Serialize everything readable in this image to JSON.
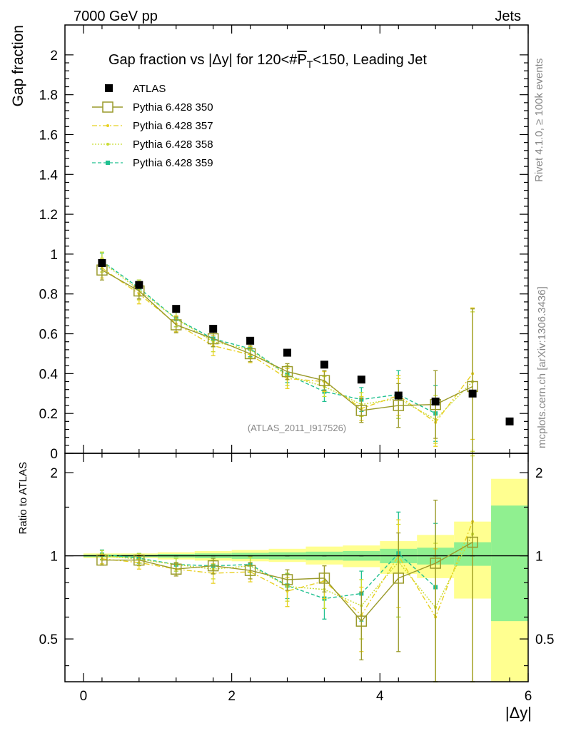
{
  "header": {
    "energy_label": "7000 GeV pp",
    "process_label": "Jets",
    "side_label_top": "Rivet 4.1.0, ≥ 100k events",
    "side_label_bottom": "mcplots.cern.ch [arXiv:1306.3436]",
    "analysis_id": "(ATLAS_2011_I917526)"
  },
  "chart_data": [
    {
      "type": "line",
      "panel": "main",
      "title_parts": [
        "Gap fraction vs |Δy| for 120<#",
        "P",
        "T",
        "<150, Leading Jet"
      ],
      "ylabel": "Gap fraction",
      "xlabel": "|Δy|",
      "xlim": [
        -0.25,
        6
      ],
      "ylim": [
        0,
        2.15
      ],
      "yticks": [
        0,
        0.2,
        0.4,
        0.6,
        0.8,
        1,
        1.2,
        1.4,
        1.6,
        1.8,
        2
      ],
      "ytick_labels": [
        "0",
        "0.2",
        "0.4",
        "0.6",
        "0.8",
        "1",
        "1.2",
        "1.4",
        "1.6",
        "1.8",
        "2"
      ],
      "x": [
        0.25,
        0.75,
        1.25,
        1.75,
        2.25,
        2.75,
        3.25,
        3.75,
        4.25,
        4.75,
        5.25
      ],
      "data": {
        "name": "ATLAS",
        "color": "#000000",
        "x": [
          0.25,
          0.75,
          1.25,
          1.75,
          2.25,
          2.75,
          3.25,
          3.75,
          4.25,
          4.75,
          5.25,
          5.75
        ],
        "y": [
          0.955,
          0.845,
          0.725,
          0.625,
          0.565,
          0.505,
          0.445,
          0.37,
          0.29,
          0.26,
          0.3,
          0.16
        ]
      },
      "series": [
        {
          "name": "Pythia 6.428 350",
          "color": "#9a9a2a",
          "style": "solid",
          "marker": "open-square",
          "y": [
            0.92,
            0.815,
            0.645,
            0.575,
            0.5,
            0.41,
            0.365,
            0.215,
            0.24,
            0.245,
            0.335
          ],
          "err": [
            0.05,
            0.04,
            0.04,
            0.04,
            0.04,
            0.04,
            0.05,
            0.06,
            0.11,
            0.17,
            0.39
          ]
        },
        {
          "name": "Pythia 6.428 357",
          "color": "#e8d020",
          "style": "dashdot",
          "marker": "dot",
          "y": [
            0.93,
            0.8,
            0.65,
            0.54,
            0.495,
            0.375,
            0.36,
            0.225,
            0.29,
            0.155,
            0.4
          ],
          "err": [
            0.05,
            0.05,
            0.04,
            0.05,
            0.04,
            0.05,
            0.05,
            0.06,
            0.1,
            0.12,
            0.33
          ]
        },
        {
          "name": "Pythia 6.428 358",
          "color": "#c8dc30",
          "style": "dotted",
          "marker": "dot",
          "y": [
            0.96,
            0.82,
            0.675,
            0.56,
            0.52,
            0.39,
            0.335,
            0.245,
            0.275,
            0.17,
            0.36
          ],
          "err": [
            0.05,
            0.05,
            0.04,
            0.05,
            0.04,
            0.05,
            0.05,
            0.06,
            0.1,
            0.12,
            0.35
          ]
        },
        {
          "name": "Pythia 6.428 359",
          "color": "#20c090",
          "style": "dashed",
          "marker": "filled-square",
          "y": [
            0.965,
            0.83,
            0.675,
            0.575,
            0.525,
            0.395,
            0.31,
            0.27,
            0.295,
            0.2,
            null
          ],
          "err": [
            0.04,
            0.04,
            0.04,
            0.04,
            0.04,
            0.04,
            0.05,
            0.06,
            0.12,
            0.14,
            null
          ]
        }
      ]
    },
    {
      "type": "line",
      "panel": "ratio",
      "ylabel": "Ratio to ATLAS",
      "ylim": [
        0.35,
        2.35
      ],
      "yticks": [
        0.5,
        1,
        2
      ],
      "ytick_labels": [
        "0.5",
        "1",
        "2"
      ],
      "xticks": [
        0,
        2,
        4,
        6
      ],
      "xtick_labels": [
        "0",
        "2",
        "4",
        "6"
      ],
      "bands": {
        "x_edges": [
          0,
          0.5,
          1,
          1.5,
          2,
          2.5,
          3,
          3.5,
          4,
          4.5,
          5,
          5.5,
          6
        ],
        "inner_low": [
          0.99,
          0.99,
          0.985,
          0.98,
          0.975,
          0.97,
          0.965,
          0.96,
          0.94,
          0.93,
          0.92,
          0.58
        ],
        "inner_high": [
          1.01,
          1.01,
          1.015,
          1.02,
          1.025,
          1.03,
          1.035,
          1.04,
          1.06,
          1.07,
          1.12,
          1.52
        ],
        "outer_low": [
          0.98,
          0.98,
          0.97,
          0.96,
          0.955,
          0.95,
          0.93,
          0.91,
          0.86,
          0.83,
          0.7,
          0.35
        ],
        "outer_high": [
          1.02,
          1.02,
          1.03,
          1.04,
          1.05,
          1.06,
          1.08,
          1.09,
          1.13,
          1.19,
          1.33,
          1.9
        ],
        "inner_color": "#90f090",
        "outer_color": "#ffff90"
      },
      "series": [
        {
          "name": "Pythia 6.428 350",
          "y": [
            0.965,
            0.965,
            0.895,
            0.92,
            0.885,
            0.82,
            0.83,
            0.58,
            0.83,
            0.94,
            1.12
          ],
          "err": [
            0.04,
            0.04,
            0.05,
            0.06,
            0.06,
            0.07,
            0.09,
            0.16,
            0.38,
            0.65,
            1.3
          ]
        },
        {
          "name": "Pythia 6.428 357",
          "y": [
            0.975,
            0.945,
            0.895,
            0.865,
            0.875,
            0.745,
            0.81,
            0.61,
            1.0,
            0.6,
            1.33
          ],
          "err": [
            0.04,
            0.05,
            0.05,
            0.07,
            0.07,
            0.09,
            0.11,
            0.16,
            0.35,
            0.46,
            1.1
          ]
        },
        {
          "name": "Pythia 6.428 358",
          "y": [
            1.005,
            0.97,
            0.93,
            0.895,
            0.92,
            0.775,
            0.755,
            0.66,
            0.95,
            0.65,
            1.2
          ],
          "err": [
            0.04,
            0.05,
            0.05,
            0.07,
            0.07,
            0.09,
            0.11,
            0.16,
            0.35,
            0.46,
            1.1
          ]
        },
        {
          "name": "Pythia 6.428 359",
          "y": [
            1.01,
            0.98,
            0.93,
            0.92,
            0.93,
            0.78,
            0.7,
            0.73,
            1.02,
            0.77,
            null
          ],
          "err": [
            0.04,
            0.04,
            0.05,
            0.06,
            0.06,
            0.08,
            0.11,
            0.15,
            0.42,
            0.54,
            null
          ]
        }
      ]
    }
  ]
}
